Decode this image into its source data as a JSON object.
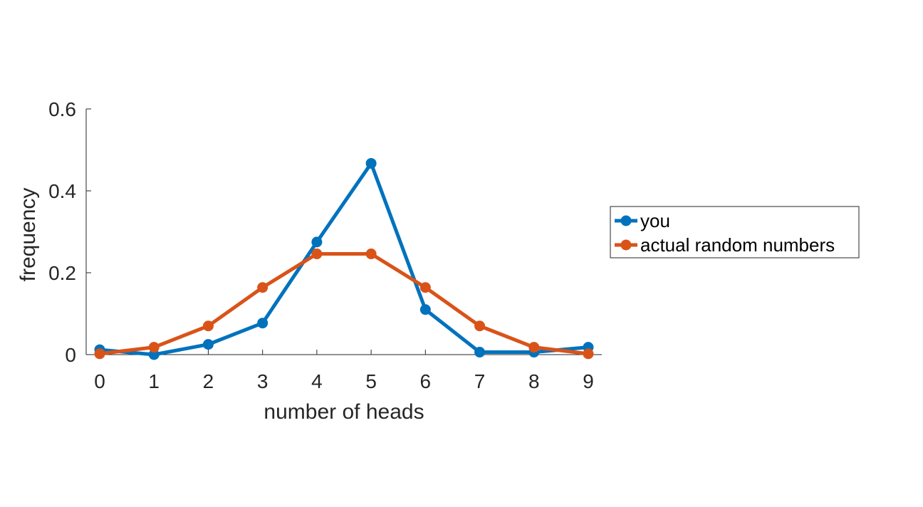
{
  "chart_data": {
    "type": "line",
    "xlabel": "number of heads",
    "ylabel": "frequency",
    "x": [
      0,
      1,
      2,
      3,
      4,
      5,
      6,
      7,
      8,
      9
    ],
    "xlim": [
      0,
      9
    ],
    "ylim": [
      0,
      0.6
    ],
    "x_ticks": [
      "0",
      "1",
      "2",
      "3",
      "4",
      "5",
      "6",
      "7",
      "8",
      "9"
    ],
    "y_ticks": [
      "0",
      "0.2",
      "0.4",
      "0.6"
    ],
    "y_tick_values": [
      0,
      0.2,
      0.4,
      0.6
    ],
    "grid": false,
    "legend_position": "right",
    "series": [
      {
        "name": "you",
        "color": "#0072BD",
        "values": [
          0.012,
          0.0,
          0.025,
          0.077,
          0.275,
          0.467,
          0.11,
          0.006,
          0.006,
          0.018
        ]
      },
      {
        "name": "actual random numbers",
        "color": "#D95319",
        "values": [
          0.002,
          0.018,
          0.07,
          0.164,
          0.246,
          0.246,
          0.164,
          0.07,
          0.018,
          0.002
        ]
      }
    ]
  }
}
